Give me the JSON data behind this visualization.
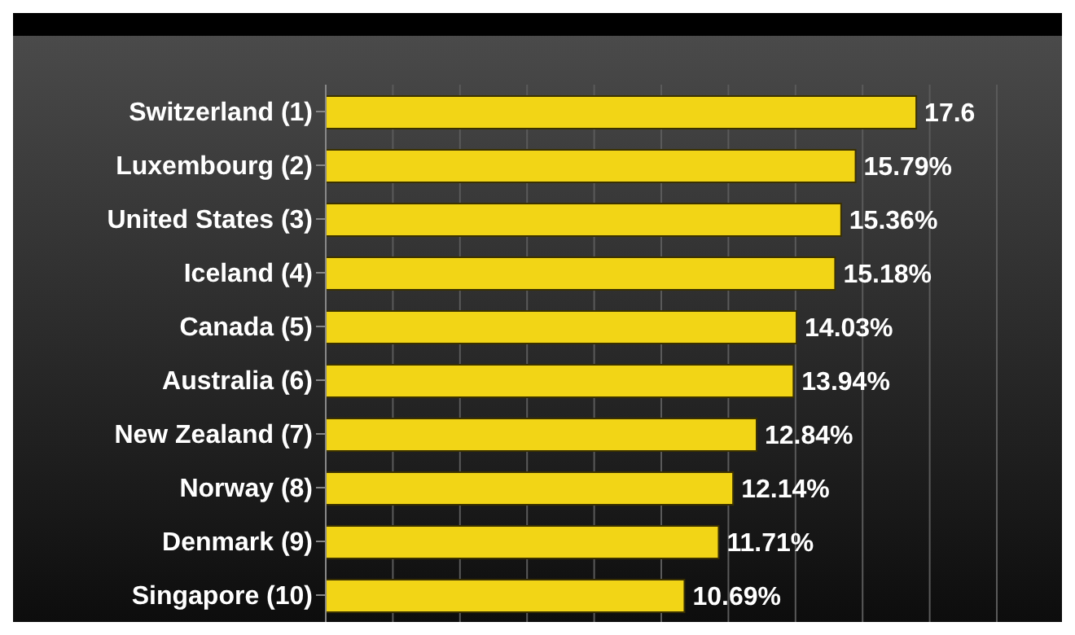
{
  "chart_data": {
    "type": "bar",
    "orientation": "horizontal",
    "categories": [
      "Switzerland (1)",
      "Luxembourg (2)",
      "United States (3)",
      "Iceland (4)",
      "Canada (5)",
      "Australia (6)",
      "New Zealand (7)",
      "Norway (8)",
      "Denmark (9)",
      "Singapore (10)"
    ],
    "values": [
      17.6,
      15.79,
      15.36,
      15.18,
      14.03,
      13.94,
      12.84,
      12.14,
      11.71,
      10.69
    ],
    "value_labels": [
      "17.6",
      "15.79%",
      "15.36%",
      "15.18%",
      "14.03%",
      "13.94%",
      "12.84%",
      "12.14%",
      "11.71%",
      "10.69%"
    ],
    "color": "#f2d516",
    "xlim": [
      0,
      20
    ],
    "xticks": [
      {
        "value": 0,
        "label": null
      },
      {
        "value": 2,
        "label": null
      },
      {
        "value": 4,
        "label": null
      },
      {
        "value": 6,
        "label": null
      },
      {
        "value": 8,
        "label": null
      },
      {
        "value": 10,
        "label": null
      },
      {
        "value": 12,
        "label": null
      },
      {
        "value": 14,
        "label": null
      },
      {
        "value": 16,
        "label": null
      },
      {
        "value": 18,
        "label": null
      },
      {
        "value": 20,
        "label": null
      }
    ],
    "grid": "x",
    "tick_labels": false
  }
}
